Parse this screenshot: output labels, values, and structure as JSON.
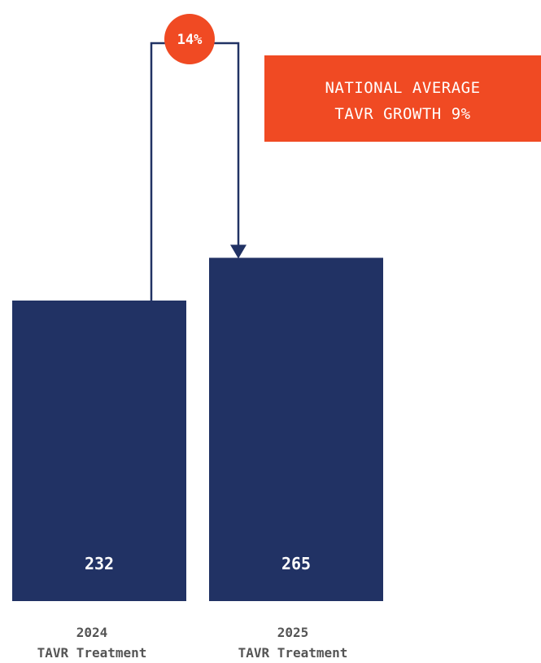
{
  "colors": {
    "bar": "#213264",
    "accent": "#f04a23",
    "label": "#555555"
  },
  "chart_data": {
    "type": "bar",
    "categories": [
      {
        "line1": "2024",
        "line2": "TAVR Treatment"
      },
      {
        "line1": "2025",
        "line2": "TAVR Treatment"
      }
    ],
    "values": [
      232,
      265
    ],
    "value_labels": [
      "232",
      "265"
    ],
    "growth_badge": "14%",
    "callout": {
      "line1": "NATIONAL AVERAGE",
      "line2": "TAVR GROWTH 9%"
    },
    "title": "",
    "xlabel": "",
    "ylabel": "",
    "grid": false,
    "legend": "none"
  }
}
